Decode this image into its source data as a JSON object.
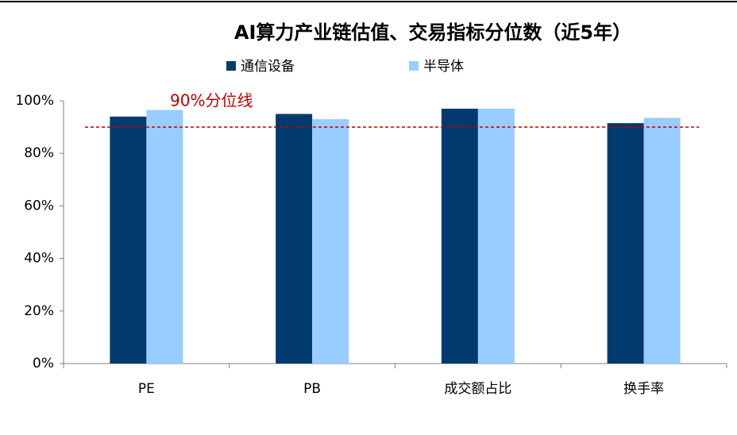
{
  "chart_data": {
    "type": "bar",
    "title": "AI算力产业链估值、交易指标分位数（近5年）",
    "categories": [
      "PE",
      "PB",
      "成交额占比",
      "换手率"
    ],
    "series": [
      {
        "name": "通信设备",
        "color": "#003a6f",
        "values": [
          94,
          95,
          97,
          91.5
        ]
      },
      {
        "name": "半导体",
        "color": "#99ccff",
        "values": [
          96.5,
          93,
          97,
          93.5
        ]
      }
    ],
    "ylim": [
      0,
      100
    ],
    "yticks": [
      {
        "value": 0,
        "label": "0%"
      },
      {
        "value": 20,
        "label": "20%"
      },
      {
        "value": 40,
        "label": "40%"
      },
      {
        "value": 60,
        "label": "60%"
      },
      {
        "value": 80,
        "label": "80%"
      },
      {
        "value": 100,
        "label": "100%"
      }
    ],
    "reference_line": {
      "value": 90,
      "label": "90%分位线",
      "color": "#c00000"
    },
    "grid": false
  }
}
